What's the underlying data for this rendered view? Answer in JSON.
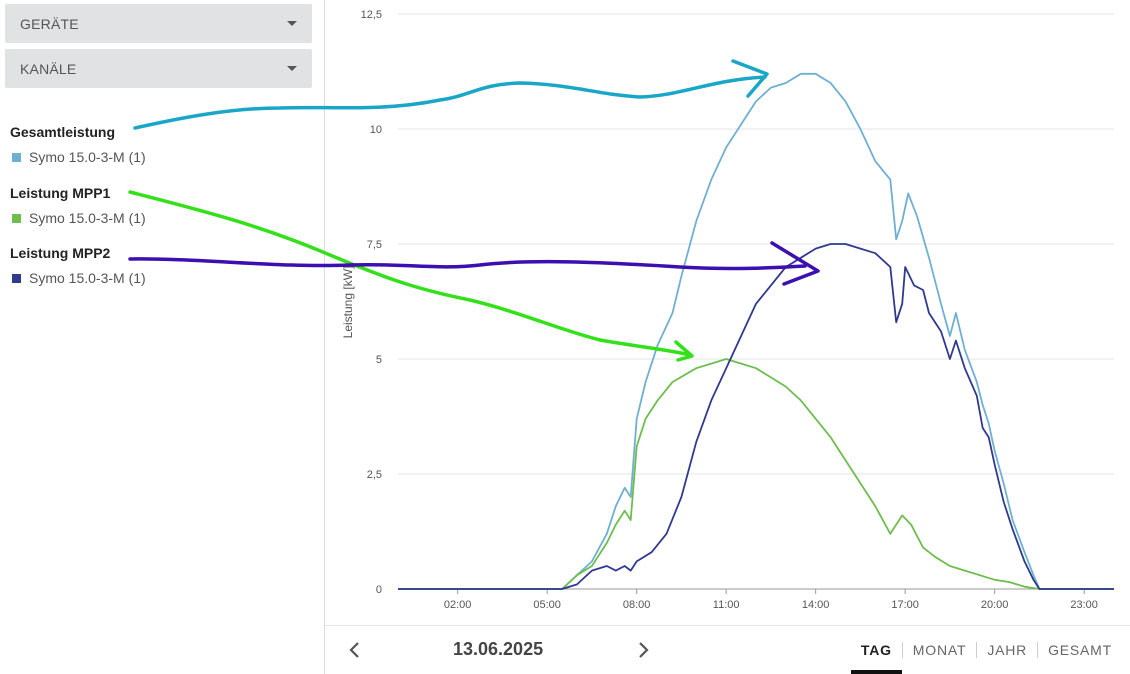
{
  "filters": {
    "devices_label": "GERÄTE",
    "channels_label": "KANÄLE"
  },
  "legend": [
    {
      "title": "Gesamtleistung",
      "item": "Symo 15.0-3-M (1)",
      "color": "#6fb0d2"
    },
    {
      "title": "Leistung MPP1",
      "item": "Symo 15.0-3-M (1)",
      "color": "#6ebd4f"
    },
    {
      "title": "Leistung MPP2",
      "item": "Symo 15.0-3-M (1)",
      "color": "#2f3a8f"
    }
  ],
  "footer": {
    "date": "13.06.2025",
    "prev_icon": "chevron-left-icon",
    "next_icon": "chevron-right-icon",
    "tabs": [
      "TAG",
      "MONAT",
      "JAHR",
      "GESAMT"
    ],
    "active_tab": "TAG"
  },
  "annotations": {
    "colors": [
      "#1aa7c7",
      "#33e01a",
      "#3b0fb0"
    ]
  },
  "chart_data": {
    "type": "line",
    "ylabel": "Leistung [kW]",
    "ylim": [
      0,
      12.5
    ],
    "yticks": [
      "0",
      "2,5",
      "5",
      "7,5",
      "10",
      "12,5"
    ],
    "ytick_values": [
      0,
      2.5,
      5,
      7.5,
      10,
      12.5
    ],
    "xlim": [
      0,
      24
    ],
    "xticks": [
      "02:00",
      "05:00",
      "08:00",
      "11:00",
      "14:00",
      "17:00",
      "20:00",
      "23:00"
    ],
    "xtick_values": [
      2,
      5,
      8,
      11,
      14,
      17,
      20,
      23
    ],
    "grid": "horizontal",
    "series": [
      {
        "name": "Gesamtleistung",
        "color": "#6fb0d2",
        "points": [
          [
            0,
            0
          ],
          [
            5.5,
            0
          ],
          [
            6.0,
            0.3
          ],
          [
            6.5,
            0.6
          ],
          [
            7.0,
            1.2
          ],
          [
            7.3,
            1.8
          ],
          [
            7.6,
            2.2
          ],
          [
            7.8,
            2.0
          ],
          [
            8.0,
            3.7
          ],
          [
            8.3,
            4.5
          ],
          [
            8.7,
            5.3
          ],
          [
            9.2,
            6.0
          ],
          [
            9.5,
            6.8
          ],
          [
            10.0,
            8.0
          ],
          [
            10.5,
            8.9
          ],
          [
            11.0,
            9.6
          ],
          [
            11.5,
            10.1
          ],
          [
            12.0,
            10.6
          ],
          [
            12.5,
            10.9
          ],
          [
            13.0,
            11.0
          ],
          [
            13.5,
            11.2
          ],
          [
            14.0,
            11.2
          ],
          [
            14.5,
            11.0
          ],
          [
            15.0,
            10.6
          ],
          [
            15.5,
            10.0
          ],
          [
            16.0,
            9.3
          ],
          [
            16.5,
            8.9
          ],
          [
            16.7,
            7.6
          ],
          [
            16.9,
            8.0
          ],
          [
            17.1,
            8.6
          ],
          [
            17.4,
            8.1
          ],
          [
            17.8,
            7.2
          ],
          [
            18.2,
            6.2
          ],
          [
            18.5,
            5.5
          ],
          [
            18.7,
            6.0
          ],
          [
            19.0,
            5.2
          ],
          [
            19.4,
            4.5
          ],
          [
            19.6,
            4.0
          ],
          [
            19.8,
            3.6
          ],
          [
            20.0,
            3.0
          ],
          [
            20.3,
            2.3
          ],
          [
            20.6,
            1.5
          ],
          [
            21.0,
            0.8
          ],
          [
            21.3,
            0.3
          ],
          [
            21.5,
            0
          ],
          [
            24,
            0
          ]
        ]
      },
      {
        "name": "Leistung MPP1",
        "color": "#6ebd4f",
        "points": [
          [
            0,
            0
          ],
          [
            5.5,
            0
          ],
          [
            6.0,
            0.3
          ],
          [
            6.5,
            0.5
          ],
          [
            7.0,
            1.0
          ],
          [
            7.3,
            1.4
          ],
          [
            7.6,
            1.7
          ],
          [
            7.8,
            1.5
          ],
          [
            8.0,
            3.1
          ],
          [
            8.3,
            3.7
          ],
          [
            8.7,
            4.1
          ],
          [
            9.2,
            4.5
          ],
          [
            10.0,
            4.8
          ],
          [
            10.5,
            4.9
          ],
          [
            11.0,
            5.0
          ],
          [
            11.5,
            4.9
          ],
          [
            12.0,
            4.8
          ],
          [
            12.5,
            4.6
          ],
          [
            13.0,
            4.4
          ],
          [
            13.5,
            4.1
          ],
          [
            14.0,
            3.7
          ],
          [
            14.5,
            3.3
          ],
          [
            15.0,
            2.8
          ],
          [
            15.5,
            2.3
          ],
          [
            16.0,
            1.8
          ],
          [
            16.5,
            1.2
          ],
          [
            16.7,
            1.4
          ],
          [
            16.9,
            1.6
          ],
          [
            17.2,
            1.4
          ],
          [
            17.6,
            0.9
          ],
          [
            18.0,
            0.7
          ],
          [
            18.5,
            0.5
          ],
          [
            19.0,
            0.4
          ],
          [
            19.5,
            0.3
          ],
          [
            20.0,
            0.2
          ],
          [
            20.5,
            0.15
          ],
          [
            21.0,
            0.05
          ],
          [
            21.5,
            0
          ],
          [
            24,
            0
          ]
        ]
      },
      {
        "name": "Leistung MPP2",
        "color": "#2f3a8f",
        "points": [
          [
            0,
            0
          ],
          [
            5.5,
            0
          ],
          [
            6.0,
            0.1
          ],
          [
            6.5,
            0.4
          ],
          [
            7.0,
            0.5
          ],
          [
            7.3,
            0.4
          ],
          [
            7.6,
            0.5
          ],
          [
            7.8,
            0.4
          ],
          [
            8.0,
            0.6
          ],
          [
            8.5,
            0.8
          ],
          [
            9.0,
            1.2
          ],
          [
            9.5,
            2.0
          ],
          [
            10.0,
            3.2
          ],
          [
            10.5,
            4.1
          ],
          [
            11.0,
            4.8
          ],
          [
            11.5,
            5.5
          ],
          [
            12.0,
            6.2
          ],
          [
            12.5,
            6.6
          ],
          [
            13.0,
            7.0
          ],
          [
            13.5,
            7.2
          ],
          [
            14.0,
            7.4
          ],
          [
            14.5,
            7.5
          ],
          [
            15.0,
            7.5
          ],
          [
            15.5,
            7.4
          ],
          [
            16.0,
            7.3
          ],
          [
            16.5,
            7.0
          ],
          [
            16.7,
            5.8
          ],
          [
            16.9,
            6.2
          ],
          [
            17.0,
            7.0
          ],
          [
            17.3,
            6.6
          ],
          [
            17.6,
            6.5
          ],
          [
            17.8,
            6.0
          ],
          [
            18.2,
            5.6
          ],
          [
            18.5,
            5.0
          ],
          [
            18.7,
            5.4
          ],
          [
            19.0,
            4.8
          ],
          [
            19.4,
            4.2
          ],
          [
            19.6,
            3.5
          ],
          [
            19.8,
            3.3
          ],
          [
            20.0,
            2.7
          ],
          [
            20.3,
            1.9
          ],
          [
            20.6,
            1.3
          ],
          [
            21.0,
            0.6
          ],
          [
            21.3,
            0.2
          ],
          [
            21.5,
            0
          ],
          [
            24,
            0
          ]
        ]
      }
    ]
  }
}
